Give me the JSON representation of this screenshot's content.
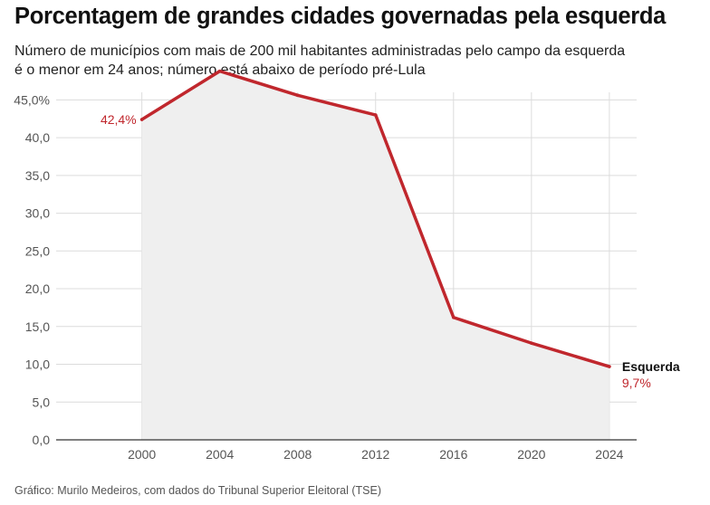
{
  "title": "Porcentagem de grandes cidades governadas pela esquerda",
  "subtitle": [
    "Número de municípios com mais de 200 mil habitantes administradas pelo campo da esquerda",
    "é o menor em 24 anos; número está abaixo de período pré-Lula"
  ],
  "source": "Gráfico: Murilo Medeiros, com dados do Tribunal Superior Eleitoral (TSE)",
  "chart_data": {
    "type": "area",
    "x": [
      2000,
      2004,
      2008,
      2012,
      2016,
      2020,
      2024
    ],
    "xticks": [
      "2000",
      "2004",
      "2008",
      "2012",
      "2016",
      "2020",
      "2024"
    ],
    "yticks": [
      "0,0",
      "5,0",
      "10,0",
      "15,0",
      "20,0",
      "25,0",
      "30,0",
      "35,0",
      "40,0",
      "45,0%"
    ],
    "ylim": [
      0,
      46
    ],
    "xlim": [
      1995.6,
      2025.4
    ],
    "grid": true,
    "series": [
      {
        "name": "Esquerda",
        "values": [
          42.4,
          48.8,
          45.6,
          43.0,
          16.2,
          12.8,
          9.7
        ],
        "color": "#c0272d",
        "fill": "#efefef",
        "labels": [
          {
            "index": 0,
            "text": "42,4%"
          },
          {
            "index": 6,
            "text": "9,7%"
          }
        ]
      }
    ]
  }
}
